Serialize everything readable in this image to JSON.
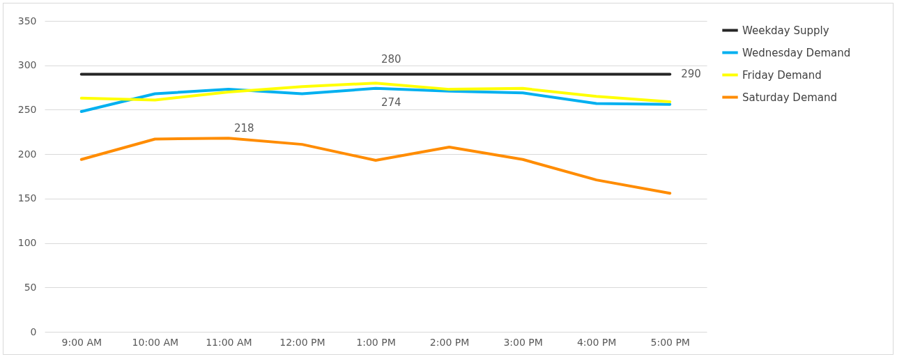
{
  "chart_data": {
    "type": "line",
    "categories": [
      "9:00 AM",
      "10:00 AM",
      "11:00 AM",
      "12:00 PM",
      "1:00 PM",
      "2:00 PM",
      "3:00 PM",
      "4:00 PM",
      "5:00 PM"
    ],
    "series": [
      {
        "name": "Weekday Supply",
        "color": "#262626",
        "values": [
          290,
          290,
          290,
          290,
          290,
          290,
          290,
          290,
          290
        ],
        "value_labels": [
          null,
          null,
          null,
          null,
          null,
          null,
          null,
          null,
          "290"
        ]
      },
      {
        "name": "Wednesday Demand",
        "color": "#00b0f0",
        "values": [
          248,
          268,
          273,
          268,
          274,
          271,
          269,
          257,
          256
        ],
        "value_labels": [
          null,
          null,
          null,
          null,
          "274",
          null,
          null,
          null,
          null
        ]
      },
      {
        "name": "Friday Demand",
        "color": "#ffff00",
        "values": [
          263,
          261,
          270,
          276,
          280,
          273,
          274,
          265,
          259
        ],
        "value_labels": [
          null,
          null,
          null,
          null,
          "280",
          null,
          null,
          null,
          null
        ]
      },
      {
        "name": "Saturday Demand",
        "color": "#ff8c00",
        "values": [
          194,
          217,
          218,
          211,
          193,
          208,
          194,
          171,
          156
        ],
        "value_labels": [
          null,
          null,
          "218",
          null,
          null,
          null,
          null,
          null,
          null
        ]
      }
    ],
    "ylim": [
      0,
      350
    ],
    "yticks": [
      0,
      50,
      100,
      150,
      200,
      250,
      300,
      350
    ],
    "grid": "y",
    "legend": "right",
    "line_style": "solid"
  }
}
